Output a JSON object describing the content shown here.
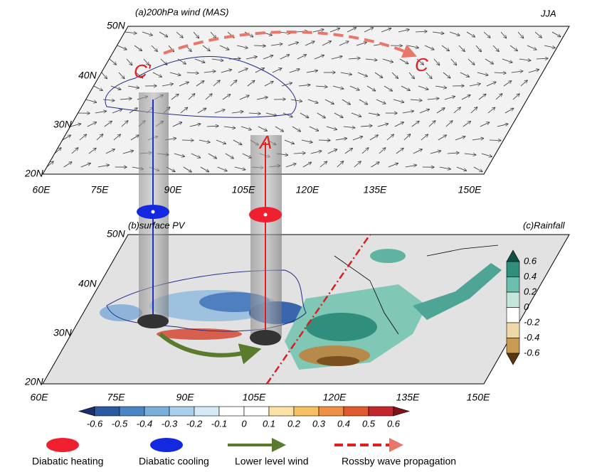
{
  "panel_a": {
    "title": "(a)200hPa wind (MAS)",
    "season": "JJA",
    "lat_labels": [
      "50N",
      "40N",
      "30N",
      "20N"
    ],
    "lon_labels": [
      "60E",
      "75E",
      "90E",
      "105E",
      "120E",
      "135E",
      "150E"
    ],
    "annotations": [
      "C'",
      "C",
      "A"
    ]
  },
  "panel_b": {
    "title": "(b)surface PV",
    "lat_labels": [
      "50N",
      "40N",
      "30N",
      "20N"
    ],
    "lon_labels": [
      "60E",
      "75E",
      "90E",
      "105E",
      "120E",
      "135E",
      "150E"
    ]
  },
  "panel_c": {
    "title": "(c)Rainfall"
  },
  "pv_colorbar": {
    "ticks": [
      -0.6,
      -0.5,
      -0.4,
      -0.3,
      -0.2,
      -0.1,
      0,
      0.1,
      0.2,
      0.3,
      0.4,
      0.5,
      0.6
    ]
  },
  "rain_colorbar": {
    "ticks": [
      0.6,
      0.4,
      0.2,
      0,
      -0.2,
      -0.4,
      -0.6
    ]
  },
  "legend": [
    "Diabatic heating",
    "Diabatic cooling",
    "Lower level wind",
    "Rossby wave propagation"
  ]
}
